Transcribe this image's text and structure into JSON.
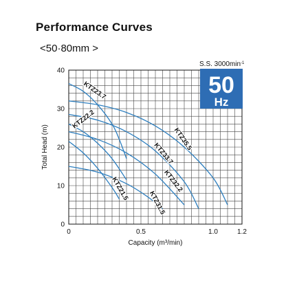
{
  "header": {
    "title": "Performance  Curves",
    "subtitle": "<50·80mm >"
  },
  "badge": {
    "speed_label": "S.S. 3000min",
    "speed_sup": "-1",
    "freq_value": "50",
    "freq_unit": "Hz",
    "color": "#2e6db4"
  },
  "chart_data": {
    "type": "line",
    "xlabel": "Capacity (m³/min)",
    "ylabel": "Total Head (m)",
    "xlim": [
      0,
      1.2
    ],
    "ylim": [
      0,
      40
    ],
    "x_ticks": [
      {
        "value": 0,
        "label": "0"
      },
      {
        "value": 0.5,
        "label": "0.5"
      },
      {
        "value": 1.0,
        "label": "1.0"
      },
      {
        "value": 1.2,
        "label": "1.2"
      }
    ],
    "y_ticks": [
      {
        "value": 0,
        "label": "0"
      },
      {
        "value": 10,
        "label": "10"
      },
      {
        "value": 20,
        "label": "20"
      },
      {
        "value": 30,
        "label": "30"
      },
      {
        "value": 40,
        "label": "40"
      }
    ],
    "grid": true,
    "curve_color": "#2e7fbf",
    "series": [
      {
        "name": "KTZ23.7",
        "points": [
          [
            0,
            36.5
          ],
          [
            0.1,
            34.5
          ],
          [
            0.2,
            31
          ],
          [
            0.3,
            26
          ],
          [
            0.35,
            22
          ],
          [
            0.4,
            17
          ]
        ]
      },
      {
        "name": "KTZ35.5",
        "points": [
          [
            0,
            32
          ],
          [
            0.2,
            31
          ],
          [
            0.4,
            29
          ],
          [
            0.6,
            25.5
          ],
          [
            0.8,
            20
          ],
          [
            1.0,
            12
          ],
          [
            1.1,
            5
          ]
        ]
      },
      {
        "name": "KTZ33.7",
        "points": [
          [
            0,
            28.5
          ],
          [
            0.2,
            27
          ],
          [
            0.4,
            24
          ],
          [
            0.6,
            19
          ],
          [
            0.8,
            11
          ],
          [
            0.9,
            4
          ]
        ]
      },
      {
        "name": "KTZ22.2",
        "points": [
          [
            0,
            26
          ],
          [
            0.1,
            24
          ],
          [
            0.2,
            21
          ],
          [
            0.3,
            17
          ],
          [
            0.4,
            11.5
          ]
        ]
      },
      {
        "name": "KTZ32.2",
        "points": [
          [
            0,
            24
          ],
          [
            0.2,
            22
          ],
          [
            0.4,
            18.5
          ],
          [
            0.6,
            13
          ],
          [
            0.8,
            5
          ]
        ]
      },
      {
        "name": "KTZ21.5",
        "points": [
          [
            0,
            21.5
          ],
          [
            0.1,
            18.5
          ],
          [
            0.2,
            14.5
          ],
          [
            0.3,
            9.5
          ],
          [
            0.35,
            6.5
          ]
        ]
      },
      {
        "name": "KTZ31.5",
        "points": [
          [
            0,
            15
          ],
          [
            0.2,
            13.5
          ],
          [
            0.4,
            10.5
          ],
          [
            0.55,
            7
          ],
          [
            0.65,
            4
          ]
        ]
      }
    ],
    "curve_labels": [
      "KTZ23.7",
      "KTZ35.5",
      "KTZ33.7",
      "KTZ22.2",
      "KTZ32.2",
      "KTZ21.5",
      "KTZ31.5"
    ]
  }
}
